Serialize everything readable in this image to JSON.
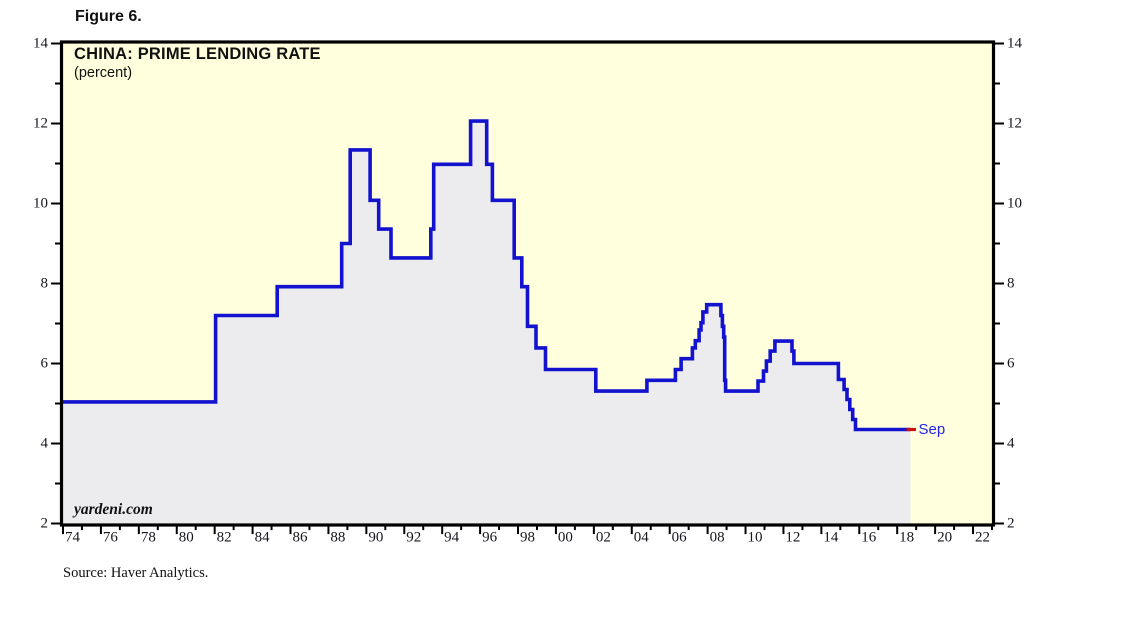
{
  "figure_label": "Figure 6.",
  "header": {
    "title": "CHINA: PRIME LENDING RATE",
    "subtitle": "(percent)"
  },
  "watermark": "yardeni.com",
  "source": "Source: Haver Analytics.",
  "latest_point_label": "Sep",
  "colors": {
    "plot_background": "#ffffde",
    "area_fill": "#ececee",
    "line": "#1313cf",
    "latest_marker": "#cc1111",
    "sep_label": "#2424ee",
    "frame": "#000000",
    "text": "#111111"
  },
  "chart_data": {
    "type": "line",
    "step": true,
    "area_fill_under_line": true,
    "title": "CHINA: PRIME LENDING RATE",
    "subtitle": "(percent)",
    "xlabel": "",
    "ylabel": "",
    "x_axis": {
      "start_year": 1974,
      "end_year": 2023,
      "minor_tick_interval": 1,
      "tick_labels": [
        "74",
        "76",
        "78",
        "80",
        "82",
        "84",
        "86",
        "88",
        "90",
        "92",
        "94",
        "96",
        "98",
        "00",
        "02",
        "04",
        "06",
        "08",
        "10",
        "12",
        "14",
        "16",
        "18",
        "20",
        "22"
      ],
      "label_year_step": 2,
      "first_label_year": 1974
    },
    "y_axis": {
      "min": 2,
      "max": 14,
      "major_ticks": [
        2,
        4,
        6,
        8,
        10,
        12,
        14
      ],
      "minor_ticks": [
        3,
        5,
        7,
        9,
        11,
        13
      ],
      "labels": [
        "2",
        "4",
        "6",
        "8",
        "10",
        "12",
        "14"
      ],
      "sides": [
        "left",
        "right"
      ]
    },
    "series": [
      {
        "name": "China prime lending rate (percent)",
        "points": [
          [
            1974.0,
            5.04
          ],
          [
            1982.05,
            7.2
          ],
          [
            1985.3,
            7.92
          ],
          [
            1988.7,
            9.0
          ],
          [
            1989.15,
            11.34
          ],
          [
            1990.2,
            10.08
          ],
          [
            1990.65,
            9.36
          ],
          [
            1991.3,
            8.64
          ],
          [
            1993.4,
            9.36
          ],
          [
            1993.55,
            10.98
          ],
          [
            1995.5,
            12.06
          ],
          [
            1996.35,
            10.98
          ],
          [
            1996.65,
            10.08
          ],
          [
            1997.8,
            8.64
          ],
          [
            1998.2,
            7.92
          ],
          [
            1998.5,
            6.93
          ],
          [
            1998.95,
            6.39
          ],
          [
            1999.45,
            5.85
          ],
          [
            2002.1,
            5.31
          ],
          [
            2004.8,
            5.58
          ],
          [
            2006.3,
            5.85
          ],
          [
            2006.6,
            6.12
          ],
          [
            2007.2,
            6.39
          ],
          [
            2007.35,
            6.57
          ],
          [
            2007.55,
            6.84
          ],
          [
            2007.65,
            7.02
          ],
          [
            2007.75,
            7.29
          ],
          [
            2007.95,
            7.47
          ],
          [
            2008.7,
            7.2
          ],
          [
            2008.78,
            6.93
          ],
          [
            2008.85,
            6.66
          ],
          [
            2008.9,
            5.58
          ],
          [
            2008.95,
            5.31
          ],
          [
            2010.66,
            5.56
          ],
          [
            2010.95,
            5.81
          ],
          [
            2011.1,
            6.06
          ],
          [
            2011.3,
            6.31
          ],
          [
            2011.55,
            6.56
          ],
          [
            2012.45,
            6.31
          ],
          [
            2012.55,
            6.0
          ],
          [
            2014.9,
            5.6
          ],
          [
            2015.2,
            5.35
          ],
          [
            2015.35,
            5.1
          ],
          [
            2015.5,
            4.85
          ],
          [
            2015.65,
            4.6
          ],
          [
            2015.8,
            4.35
          ],
          [
            2018.7,
            4.35
          ]
        ],
        "latest_value": 4.35,
        "latest_period": "Sep"
      }
    ],
    "legend": "none",
    "grid": false
  }
}
